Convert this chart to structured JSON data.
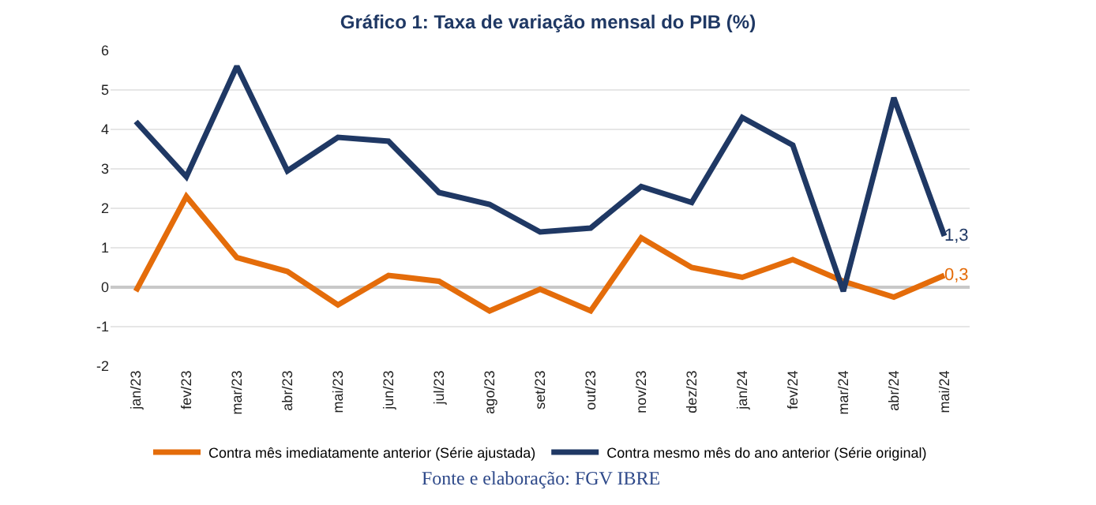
{
  "chart_data": {
    "type": "line",
    "title": "Gráfico 1: Taxa de variação mensal do PIB (%)",
    "categories": [
      "jan/23",
      "fev/23",
      "mar/23",
      "abr/23",
      "mai/23",
      "jun/23",
      "jul/23",
      "ago/23",
      "set/23",
      "out/23",
      "nov/23",
      "dez/23",
      "jan/24",
      "fev/24",
      "mar/24",
      "abr/24",
      "mai/24"
    ],
    "series": [
      {
        "name": "Contra mês imediatamente anterior (Série ajustada)",
        "color": "#e46c0a",
        "values": [
          -0.1,
          2.3,
          0.75,
          0.4,
          -0.45,
          0.3,
          0.15,
          -0.6,
          -0.05,
          -0.6,
          1.25,
          0.5,
          0.25,
          0.7,
          0.15,
          -0.25,
          0.3
        ],
        "value_labels": [
          null,
          null,
          null,
          null,
          null,
          null,
          null,
          null,
          null,
          null,
          null,
          null,
          null,
          null,
          null,
          null,
          "0,3"
        ]
      },
      {
        "name": "Contra mesmo mês do ano anterior (Série original)",
        "color": "#1f3864",
        "values": [
          4.2,
          2.8,
          5.6,
          2.95,
          3.8,
          3.7,
          2.4,
          2.1,
          1.4,
          1.5,
          2.55,
          2.15,
          4.3,
          3.6,
          -0.1,
          4.8,
          1.3
        ],
        "value_labels": [
          null,
          null,
          null,
          null,
          null,
          null,
          null,
          null,
          null,
          null,
          null,
          null,
          null,
          null,
          null,
          null,
          "1,3"
        ]
      }
    ],
    "ylim": [
      -2,
      6
    ],
    "yticks": [
      -2,
      -1,
      0,
      1,
      2,
      3,
      4,
      5,
      6
    ],
    "grid": "y",
    "legend": "bottom",
    "marker": "none",
    "line_style": "solid",
    "annotations": [
      "Fonte e elaboração: FGV IBRE"
    ]
  }
}
